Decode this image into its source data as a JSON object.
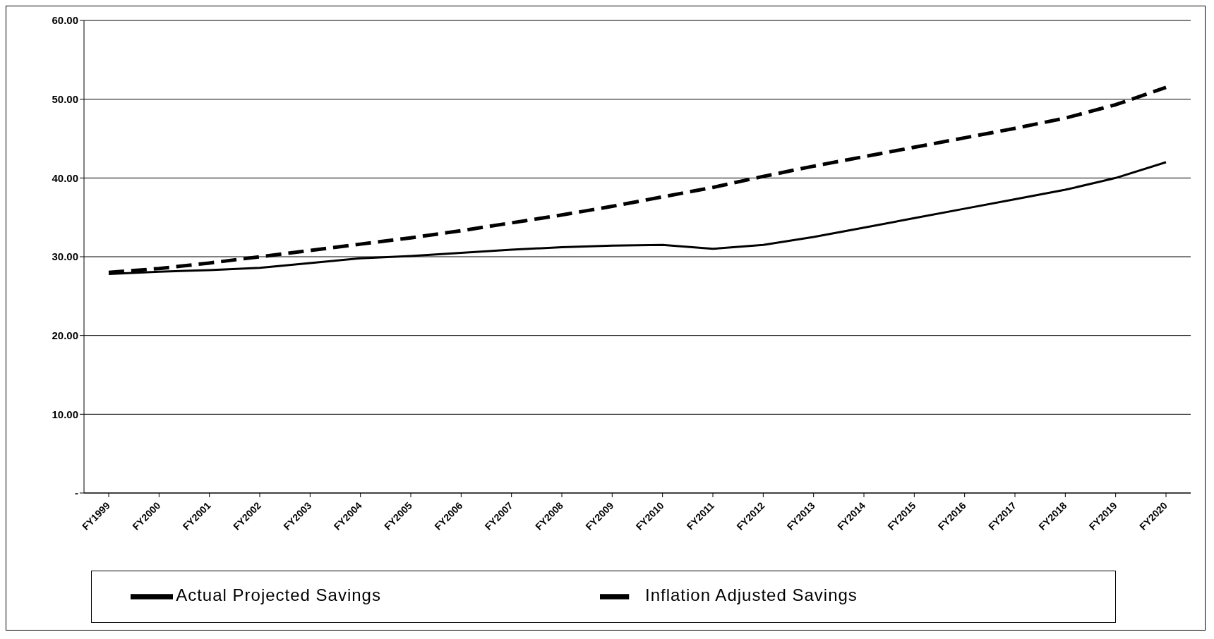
{
  "chart_data": {
    "type": "line",
    "categories": [
      "FY1999",
      "FY2000",
      "FY2001",
      "FY2002",
      "FY2003",
      "FY2004",
      "FY2005",
      "FY2006",
      "FY2007",
      "FY2008",
      "FY2009",
      "FY2010",
      "FY2011",
      "FY2012",
      "FY2013",
      "FY2014",
      "FY2015",
      "FY2016",
      "FY2017",
      "FY2018",
      "FY2019",
      "FY2020"
    ],
    "series": [
      {
        "name": "Inflation Adjusted Savings",
        "color": "#000000",
        "line_style": "dashed",
        "values": [
          28.0,
          28.5,
          29.2,
          30.0,
          30.8,
          31.6,
          32.4,
          33.3,
          34.3,
          35.3,
          36.4,
          37.6,
          38.8,
          40.2,
          41.5,
          42.7,
          43.9,
          45.1,
          46.3,
          47.6,
          49.3,
          51.5
        ]
      },
      {
        "name": "Actual Projected Savings",
        "color": "#000000",
        "line_style": "solid",
        "values": [
          27.8,
          28.1,
          28.3,
          28.6,
          29.2,
          29.8,
          30.1,
          30.5,
          30.9,
          31.2,
          31.4,
          31.5,
          31.0,
          31.5,
          32.5,
          33.7,
          34.9,
          36.1,
          37.3,
          38.5,
          40.0,
          42.0
        ]
      }
    ],
    "ylim": [
      0,
      60
    ],
    "yticks": [
      {
        "value": 0,
        "label": "-"
      },
      {
        "value": 10,
        "label": "10.00"
      },
      {
        "value": 20,
        "label": "20.00"
      },
      {
        "value": 30,
        "label": "30.00"
      },
      {
        "value": 40,
        "label": "40.00"
      },
      {
        "value": 50,
        "label": "50.00"
      },
      {
        "value": 60,
        "label": "60.00"
      }
    ],
    "grid": "y",
    "legend": "bottom",
    "marker": "none"
  }
}
